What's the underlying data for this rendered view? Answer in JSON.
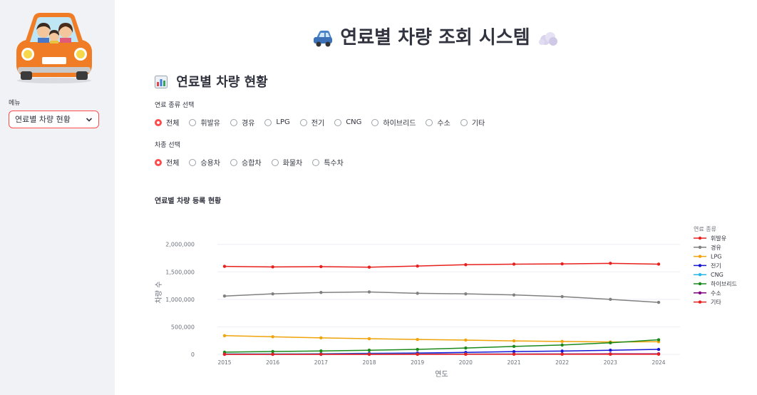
{
  "sidebar": {
    "menu_label": "메뉴",
    "menu_value": "연료별 차량 현황",
    "illustration": "family-car-illustration"
  },
  "header": {
    "title": "연료별 차량 조회 시스템",
    "title_left_icon": "car-icon",
    "title_right_icon": "smoke-cloud-icon"
  },
  "section": {
    "title": "연료별 차량 현황",
    "icon": "bar-chart-icon"
  },
  "fuel_filter": {
    "label": "연료 종류 선택",
    "options": [
      "전체",
      "휘발유",
      "경유",
      "LPG",
      "전기",
      "CNG",
      "하이브리드",
      "수소",
      "기타"
    ],
    "selected": "전체"
  },
  "vehicle_filter": {
    "label": "차종 선택",
    "options": [
      "전체",
      "승용차",
      "승합차",
      "화물차",
      "특수차"
    ],
    "selected": "전체"
  },
  "chart_title": "연료별 차량 등록 현황",
  "colors": {
    "accent": "#ff4b4b",
    "sidebar_bg": "#f0f2f6"
  },
  "chart_data": {
    "type": "line",
    "title": "연료별 차량 등록 현황",
    "xlabel": "연도",
    "ylabel": "차량 수",
    "x": [
      2015,
      2016,
      2017,
      2018,
      2019,
      2020,
      2021,
      2022,
      2023,
      2024
    ],
    "ylim": [
      0,
      2100000
    ],
    "yticks": [
      0,
      500000,
      1000000,
      1500000,
      2000000
    ],
    "ytick_labels": [
      "0",
      "500,000",
      "1,000,000",
      "1,500,000",
      "2,000,000"
    ],
    "legend_title": "연료 종류",
    "legend_position": "right",
    "grid": true,
    "series": [
      {
        "name": "휘발유",
        "color": "#e8201d",
        "values": [
          1600000,
          1590000,
          1595000,
          1585000,
          1605000,
          1630000,
          1640000,
          1645000,
          1655000,
          1640000
        ]
      },
      {
        "name": "경유",
        "color": "#808080",
        "values": [
          1060000,
          1100000,
          1125000,
          1135000,
          1110000,
          1100000,
          1080000,
          1050000,
          1000000,
          945000
        ]
      },
      {
        "name": "LPG",
        "color": "#f0a30a",
        "values": [
          340000,
          320000,
          300000,
          285000,
          270000,
          260000,
          245000,
          235000,
          225000,
          230000
        ]
      },
      {
        "name": "전기",
        "color": "#1515d6",
        "values": [
          5000,
          8000,
          12000,
          18000,
          25000,
          35000,
          50000,
          60000,
          75000,
          90000
        ]
      },
      {
        "name": "CNG",
        "color": "#26b7ea",
        "values": [
          10000,
          9000,
          8500,
          8000,
          7500,
          7000,
          6500,
          6000,
          5500,
          5000
        ]
      },
      {
        "name": "하이브리드",
        "color": "#1b8a1b",
        "values": [
          40000,
          52000,
          62000,
          75000,
          90000,
          115000,
          145000,
          170000,
          210000,
          265000
        ]
      },
      {
        "name": "수소",
        "color": "#800080",
        "values": [
          0,
          0,
          100,
          500,
          1500,
          3000,
          5000,
          7000,
          9000,
          10000
        ]
      },
      {
        "name": "기타",
        "color": "#e8201d",
        "values": [
          2000,
          2000,
          2000,
          2000,
          2000,
          2000,
          2000,
          2000,
          2000,
          2000
        ]
      }
    ]
  }
}
